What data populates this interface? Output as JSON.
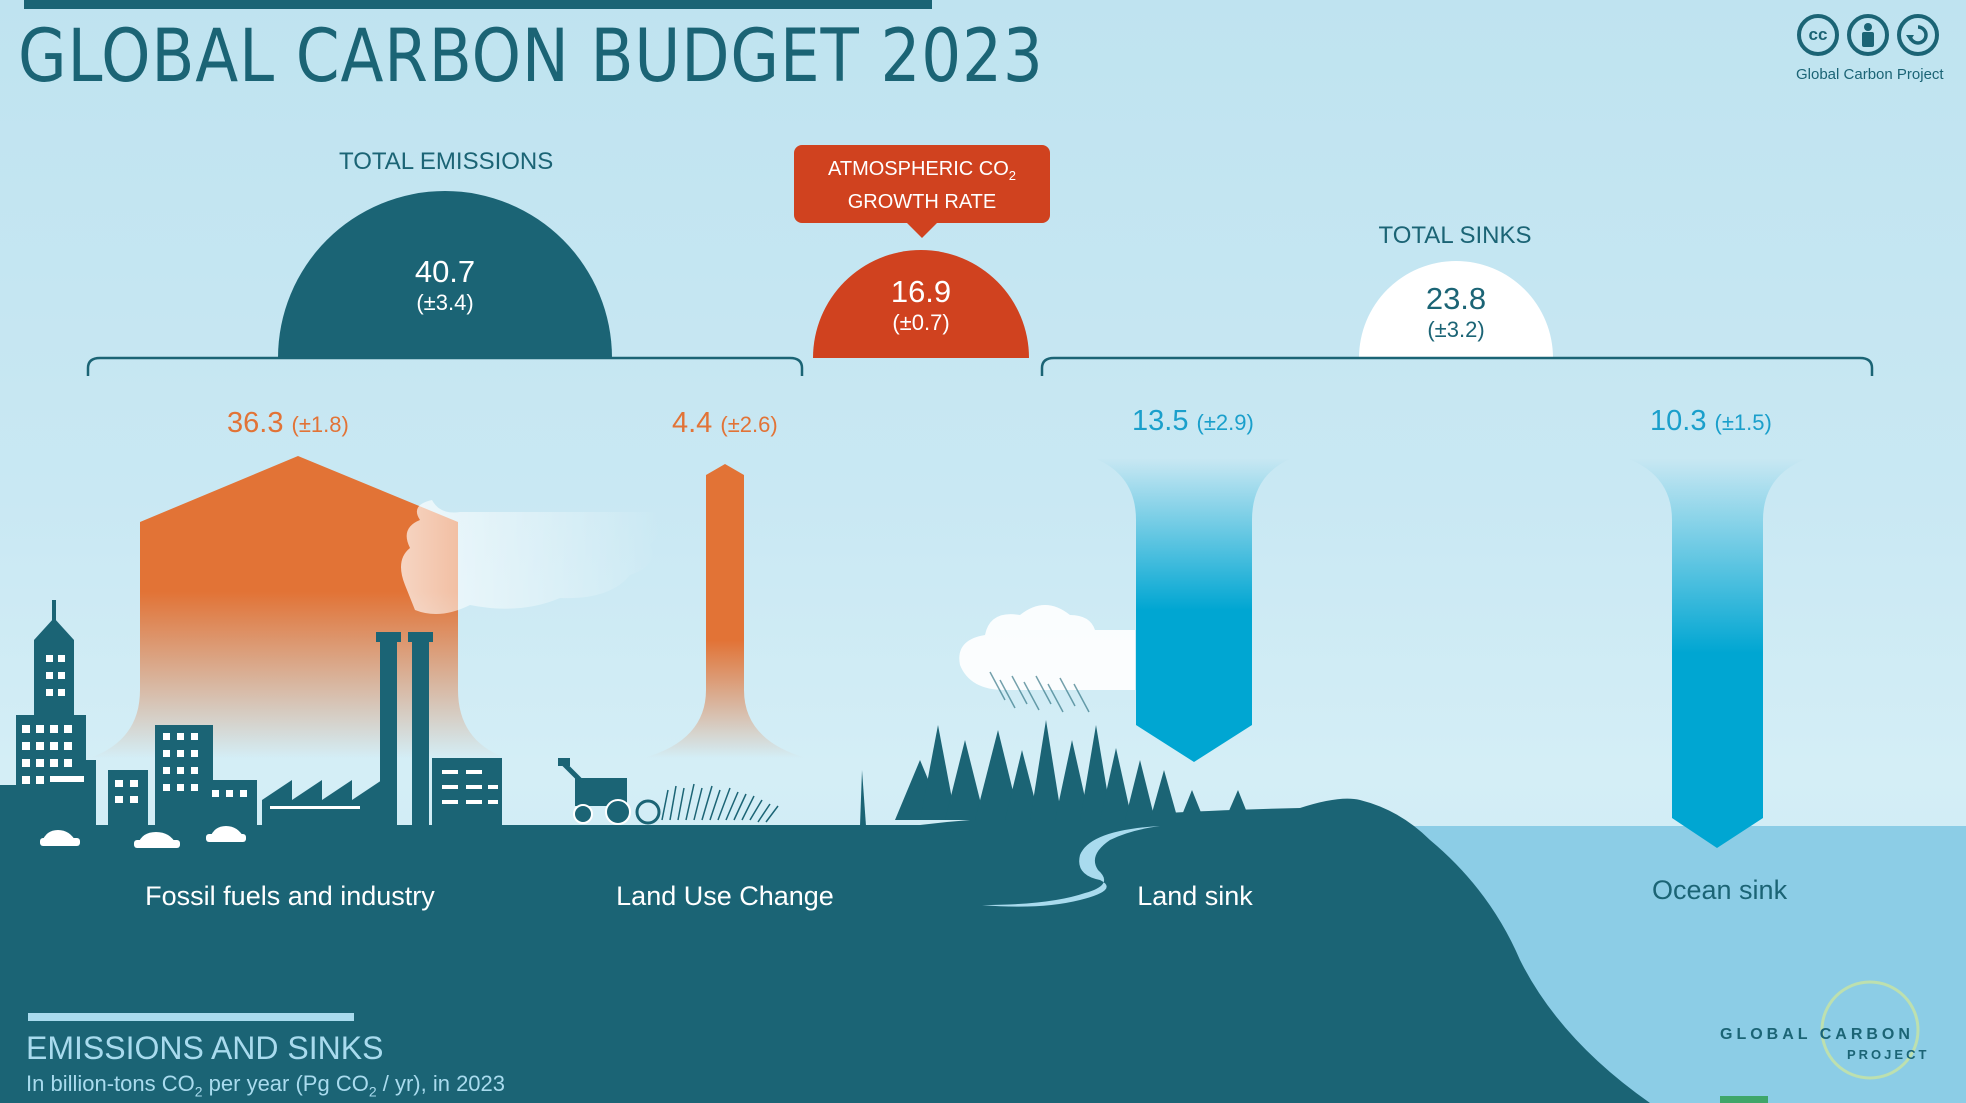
{
  "header": {
    "title": "GLOBAL CARBON BUDGET 2023",
    "license_icons": [
      "cc-icon",
      "person-icon",
      "share-alike-icon"
    ],
    "cc_symbol": "cc",
    "credit": "Global Carbon Project"
  },
  "totals": {
    "emissions": {
      "label": "TOTAL EMISSIONS",
      "value": "40.7",
      "uncertainty": "(±3.4)"
    },
    "atmosphere": {
      "label_line1": "ATMOSPHERIC CO",
      "label_sub": "2",
      "label_line2": "GROWTH RATE",
      "value": "16.9",
      "uncertainty": "(±0.7)"
    },
    "sinks": {
      "label": "TOTAL SINKS",
      "value": "23.8",
      "uncertainty": "(±3.2)"
    }
  },
  "fluxes": {
    "fossil": {
      "value": "36.3",
      "uncertainty": "(±1.8)",
      "label": "Fossil fuels and industry"
    },
    "land_use": {
      "value": "4.4",
      "uncertainty": "(±2.6)",
      "label": "Land Use Change"
    },
    "land_sink": {
      "value": "13.5",
      "uncertainty": "(±2.9)",
      "label": "Land sink"
    },
    "ocean_sink": {
      "value": "10.3",
      "uncertainty": "(±1.5)",
      "label": "Ocean sink"
    }
  },
  "footer": {
    "title": "EMISSIONS AND SINKS",
    "subtitle_a": "In billion-tons CO",
    "subtitle_sub1": "2",
    "subtitle_b": " per year (Pg CO",
    "subtitle_sub2": "2",
    "subtitle_c": " / yr), in 2023",
    "logo_line1": "GLOBAL  CARBON",
    "logo_line2": "PROJECT"
  },
  "colors": {
    "teal": "#1b6475",
    "orange": "#e27336",
    "red": "#d0421f",
    "blue": "#00a6d2",
    "ocean": "#8ccde6"
  }
}
